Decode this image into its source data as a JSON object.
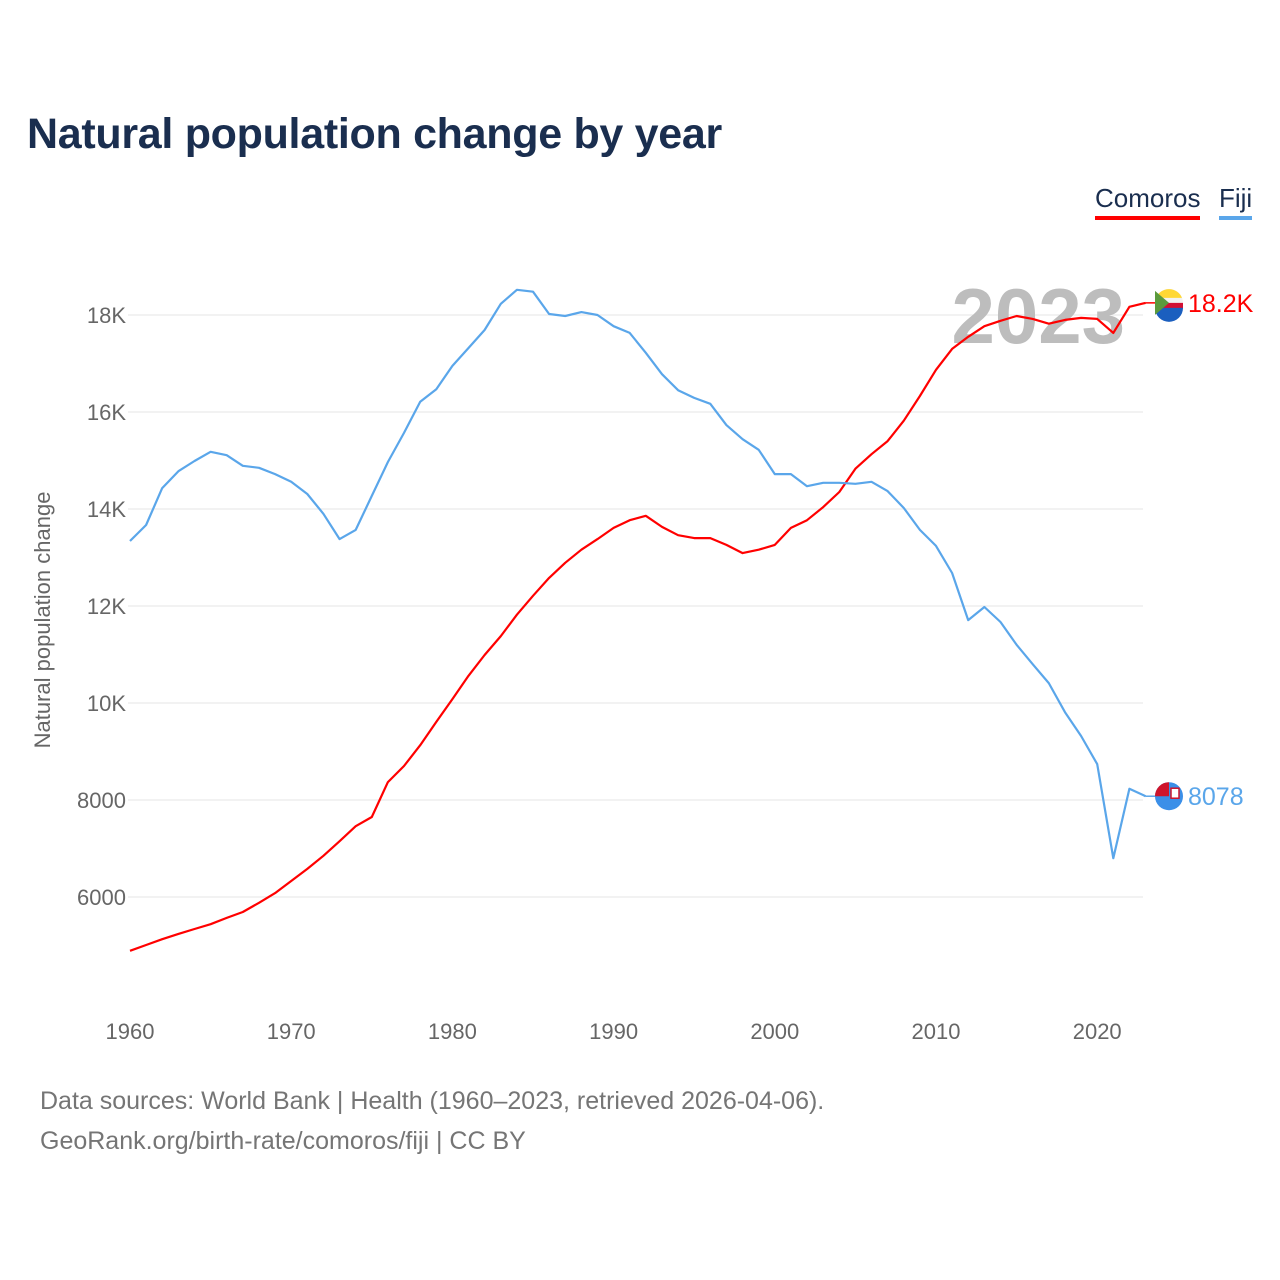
{
  "title": "Natural population change by year",
  "legend": [
    {
      "name": "Comoros",
      "color": "#ff0000"
    },
    {
      "name": "Fiji",
      "color": "#5aa6ea"
    }
  ],
  "footer": {
    "line1": "Data sources: World Bank | Health (1960–2023, retrieved 2026-04-06).",
    "line2": "GeoRank.org/birth-rate/comoros/fiji | CC BY"
  },
  "chart_data": {
    "type": "line",
    "title": "Natural population change by year",
    "xlabel": "",
    "ylabel": "Natural population change",
    "year_label": "2023",
    "xlim": [
      1960,
      2023
    ],
    "ylim": [
      4000,
      19500
    ],
    "grid": true,
    "legend_placement": "top-right",
    "x_ticks": [
      1960,
      1970,
      1980,
      1990,
      2000,
      2010,
      2020
    ],
    "y_ticks": [
      {
        "v": 6000,
        "label": "6000"
      },
      {
        "v": 8000,
        "label": "8000"
      },
      {
        "v": 10000,
        "label": "10K"
      },
      {
        "v": 12000,
        "label": "12K"
      },
      {
        "v": 14000,
        "label": "14K"
      },
      {
        "v": 16000,
        "label": "16K"
      },
      {
        "v": 18000,
        "label": "18K"
      }
    ],
    "x_start": 1960,
    "series": [
      {
        "name": "Comoros",
        "color": "#ff0000",
        "end_label": "18.2K",
        "flag": "comoros-flag",
        "values": [
          4890,
          5010,
          5130,
          5240,
          5340,
          5440,
          5570,
          5690,
          5880,
          6080,
          6330,
          6580,
          6850,
          7150,
          7460,
          7650,
          8370,
          8700,
          9130,
          9610,
          10080,
          10560,
          10990,
          11380,
          11820,
          12210,
          12580,
          12890,
          13160,
          13380,
          13610,
          13770,
          13860,
          13630,
          13460,
          13400,
          13400,
          13260,
          13090,
          13160,
          13260,
          13610,
          13770,
          14040,
          14350,
          14830,
          15130,
          15400,
          15820,
          16330,
          16870,
          17300,
          17550,
          17770,
          17880,
          17980,
          17920,
          17820,
          17900,
          17940,
          17920,
          17630,
          18170,
          18250
        ]
      },
      {
        "name": "Fiji",
        "color": "#5aa6ea",
        "end_label": "8078",
        "flag": "fiji-flag",
        "values": [
          13340,
          13670,
          14430,
          14780,
          14990,
          15180,
          15110,
          14890,
          14850,
          14720,
          14560,
          14310,
          13900,
          13380,
          13570,
          14270,
          14970,
          15570,
          16210,
          16470,
          16950,
          17320,
          17690,
          18230,
          18520,
          18480,
          18020,
          17980,
          18060,
          18000,
          17770,
          17630,
          17220,
          16780,
          16450,
          16290,
          16170,
          15730,
          15440,
          15220,
          14720,
          14720,
          14470,
          14540,
          14540,
          14520,
          14560,
          14370,
          14020,
          13570,
          13240,
          12680,
          11710,
          11980,
          11670,
          11200,
          10800,
          10410,
          9810,
          9320,
          8740,
          6800,
          8230,
          8078
        ]
      }
    ]
  }
}
